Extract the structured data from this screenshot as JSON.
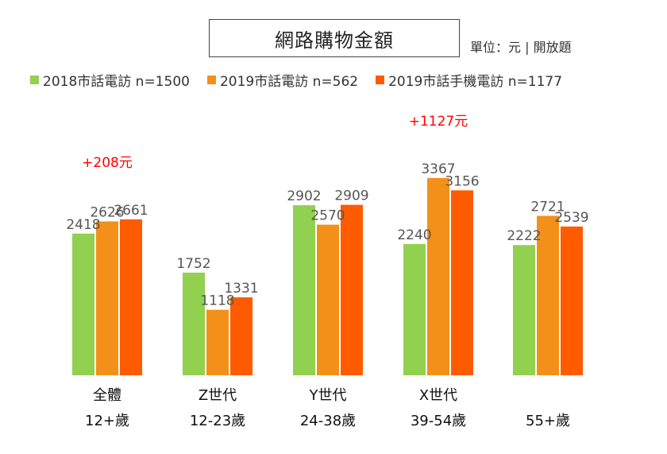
{
  "header": {
    "title": "網路購物金額",
    "unit_note": "單位：元 | 開放題"
  },
  "legend": [
    {
      "label": "2018市話電訪 n=1500",
      "color": "#92d050"
    },
    {
      "label": "2019市話電訪 n=562",
      "color": "#f39019"
    },
    {
      "label": "2019市話手機電訪 n=1177",
      "color": "#ff5b00"
    }
  ],
  "chart_data": {
    "type": "bar",
    "title": "網路購物金額",
    "categories": [
      {
        "line1": "全體",
        "line2": "12+歲"
      },
      {
        "line1": "Z世代",
        "line2": "12-23歲"
      },
      {
        "line1": "Y世代",
        "line2": "24-38歲"
      },
      {
        "line1": "X世代",
        "line2": "39-54歲"
      },
      {
        "line1": "",
        "line2": "55+歲"
      }
    ],
    "series": [
      {
        "name": "2018市話電訪 n=1500",
        "color": "#92d050",
        "values": [
          2418,
          1752,
          2902,
          2240,
          2222
        ]
      },
      {
        "name": "2019市話電訪 n=562",
        "color": "#f39019",
        "values": [
          2626,
          1118,
          2570,
          3367,
          2721
        ]
      },
      {
        "name": "2019市話手機電訪 n=1177",
        "color": "#ff5b00",
        "values": [
          2661,
          1331,
          2909,
          3156,
          2539
        ]
      }
    ],
    "ylim": [
      0,
      3600
    ],
    "annotations": [
      {
        "category_index": 0,
        "text": "+208元"
      },
      {
        "category_index": 3,
        "text": "+1127元"
      }
    ],
    "grid": false,
    "legend_position": "top"
  }
}
